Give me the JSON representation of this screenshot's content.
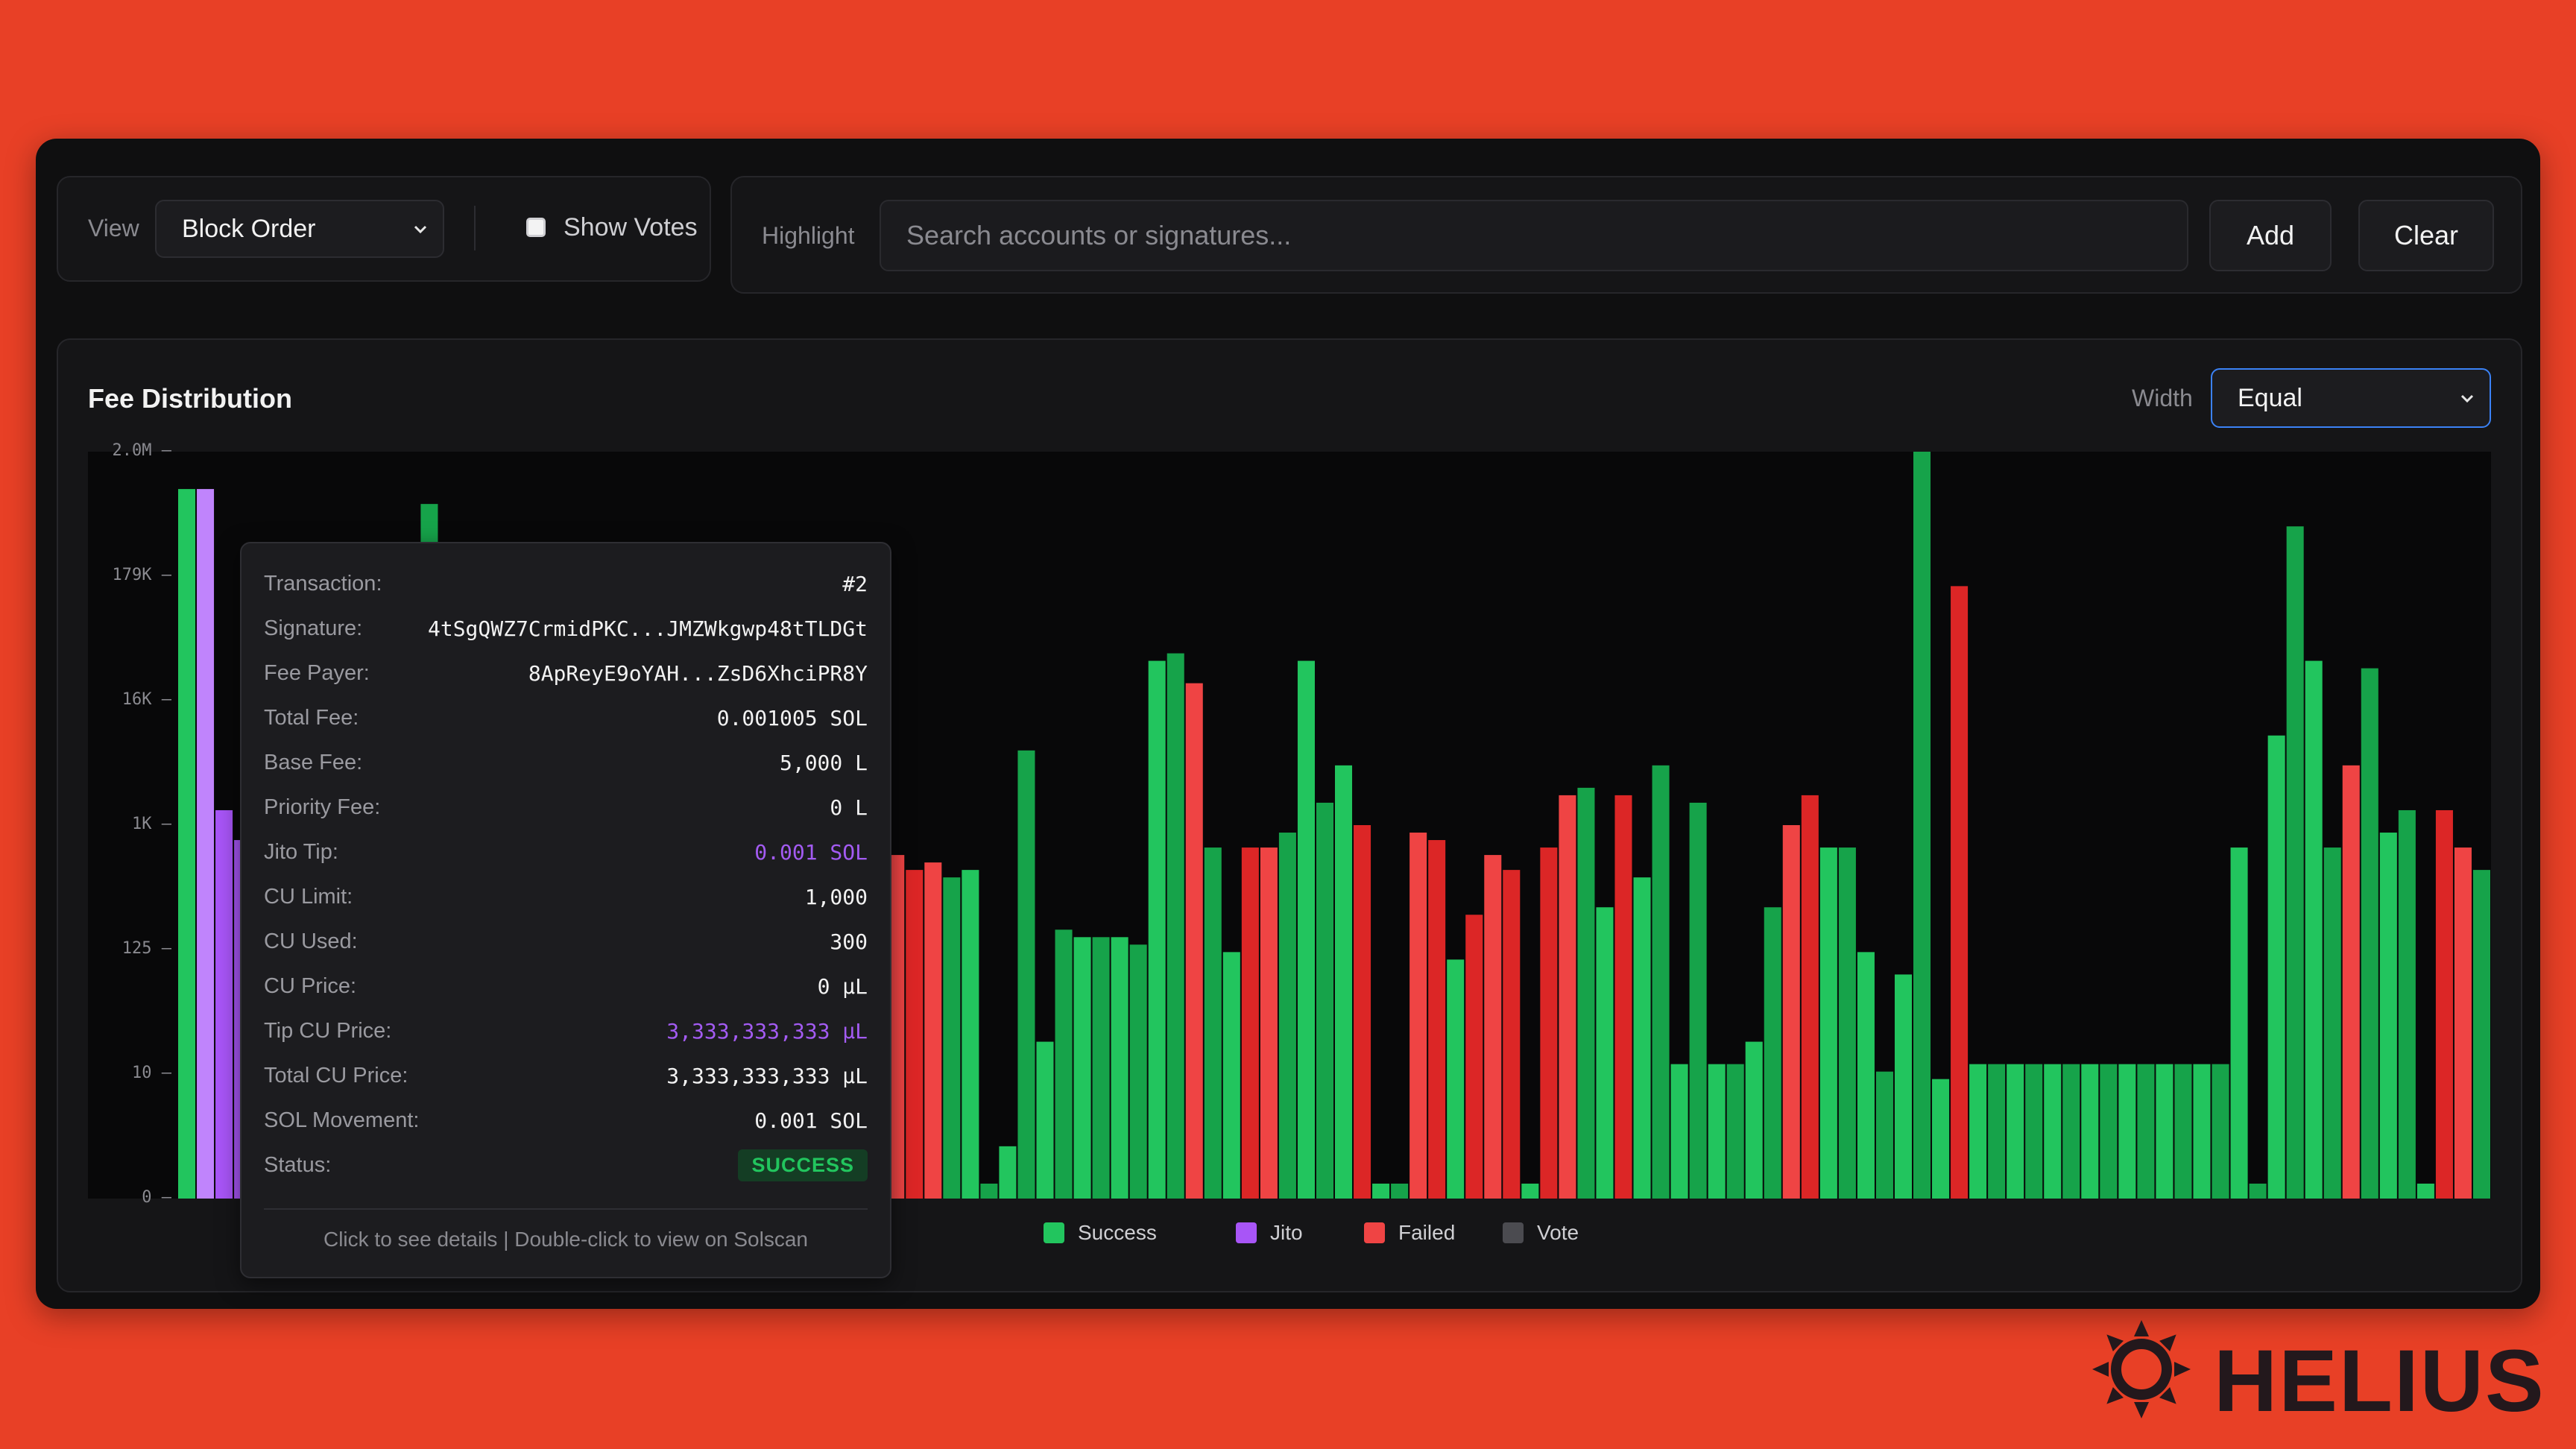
{
  "toolbar": {
    "view_label": "View",
    "view_value": "Block Order",
    "show_votes_label": "Show Votes",
    "highlight_label": "Highlight",
    "search_placeholder": "Search accounts or signatures...",
    "add_label": "Add",
    "clear_label": "Clear"
  },
  "chart_panel": {
    "title": "Fee Distribution",
    "width_label": "Width",
    "width_value": "Equal"
  },
  "colors": {
    "success": "#22c55e",
    "success_alt": "#16a34a",
    "jito": "#a855f7",
    "jito_light": "#c084fc",
    "failed": "#ef4444",
    "failed_alt": "#dc2626",
    "vote": "#4b4b50",
    "background": "#e84026"
  },
  "chart_data": {
    "type": "bar",
    "y_scale": "log",
    "y_ticks": [
      "2.0M",
      "179K",
      "16K",
      "1K",
      "125",
      "10",
      "0"
    ],
    "grid": false,
    "legend": [
      {
        "name": "Success",
        "color": "#22c55e"
      },
      {
        "name": "Jito",
        "color": "#a855f7"
      },
      {
        "name": "Failed",
        "color": "#ef4444"
      },
      {
        "name": "Vote",
        "color": "#4b4b50"
      }
    ],
    "bars_level": [
      0.95,
      0.95,
      0.52,
      0.48,
      0.45,
      0.46,
      0.45,
      0.47,
      0.46,
      0.45,
      0.44,
      0.43,
      0.43,
      0.93,
      0.42,
      0.41,
      0.42,
      0.41,
      0.42,
      0.41,
      0.42,
      0.41,
      0.42,
      0.43,
      0.42,
      0.44,
      0.41,
      0.42,
      0.41,
      0.42,
      0.41,
      0.42,
      0.41,
      0.42,
      0.44,
      0.43,
      0.42,
      0.45,
      0.46,
      0.44,
      0.45,
      0.43,
      0.44,
      0.02,
      0.07,
      0.6,
      0.21,
      0.36,
      0.35,
      0.35,
      0.35,
      0.34,
      0.72,
      0.73,
      0.69,
      0.47,
      0.33,
      0.47,
      0.47,
      0.49,
      0.72,
      0.53,
      0.58,
      0.5,
      0.02,
      0.02,
      0.49,
      0.48,
      0.32,
      0.38,
      0.46,
      0.44,
      0.02,
      0.47,
      0.54,
      0.55,
      0.39,
      0.54,
      0.43,
      0.58,
      0.18,
      0.53,
      0.18,
      0.18,
      0.21,
      0.39,
      0.5,
      0.54,
      0.47,
      0.47,
      0.33,
      0.17,
      0.3,
      1.0,
      0.16,
      0.82,
      0.18,
      0.18,
      0.18,
      0.18,
      0.18,
      0.18,
      0.18,
      0.18,
      0.18,
      0.18,
      0.18,
      0.18,
      0.18,
      0.18,
      0.47,
      0.02,
      0.62,
      0.9,
      0.72,
      0.47,
      0.58,
      0.71,
      0.49,
      0.52,
      0.02,
      0.52,
      0.47,
      0.44
    ],
    "bars_status": [
      "success",
      "jito_light",
      "jito",
      "jito",
      "success",
      "success",
      "success",
      "success",
      "success",
      "success",
      "success",
      "success",
      "success",
      "success",
      "success",
      "success",
      "success",
      "success",
      "success",
      "success",
      "success",
      "success",
      "success",
      "success",
      "success",
      "success",
      "success",
      "success",
      "success",
      "success",
      "success",
      "success",
      "success",
      "success",
      "success",
      "failed",
      "failed",
      "failed",
      "failed",
      "failed",
      "failed",
      "success",
      "success",
      "success",
      "success",
      "success",
      "success",
      "success",
      "success",
      "success",
      "success",
      "success",
      "success",
      "success",
      "failed",
      "success",
      "success",
      "failed",
      "failed",
      "success",
      "success",
      "success",
      "success",
      "failed",
      "success",
      "success",
      "failed",
      "failed",
      "success",
      "failed",
      "failed",
      "failed",
      "success",
      "failed",
      "failed",
      "success",
      "success",
      "failed",
      "success",
      "success",
      "success",
      "success",
      "success",
      "success",
      "success",
      "success",
      "failed",
      "failed",
      "success",
      "success",
      "success",
      "success",
      "success",
      "success",
      "success",
      "failed",
      "success",
      "success",
      "success",
      "success",
      "success",
      "success",
      "success",
      "success",
      "success",
      "success",
      "success",
      "success",
      "success",
      "success",
      "success",
      "success",
      "success",
      "success",
      "success",
      "success",
      "failed",
      "success",
      "success",
      "success",
      "success",
      "failed",
      "failed",
      "success"
    ]
  },
  "tooltip": {
    "rows": [
      {
        "key": "Transaction:",
        "value": "#2"
      },
      {
        "key": "Signature:",
        "value": "4tSgQWZ7CrmidPKC...JMZWkgwp48tTLDGt"
      },
      {
        "key": "Fee Payer:",
        "value": "8ApReyE9oYAH...ZsD6XhciPR8Y"
      },
      {
        "key": "Total Fee:",
        "value": "0.001005 SOL"
      },
      {
        "key": "Base Fee:",
        "value": "5,000 L"
      },
      {
        "key": "Priority Fee:",
        "value": "0 L"
      },
      {
        "key": "Jito Tip:",
        "value": "0.001 SOL"
      },
      {
        "key": "CU Limit:",
        "value": "1,000"
      },
      {
        "key": "CU Used:",
        "value": "300"
      },
      {
        "key": "CU Price:",
        "value": "0 μL"
      },
      {
        "key": "Tip CU Price:",
        "value": "3,333,333,333 μL"
      },
      {
        "key": "Total CU Price:",
        "value": "3,333,333,333 μL"
      },
      {
        "key": "SOL Movement:",
        "value": "0.001 SOL"
      },
      {
        "key": "Status:",
        "value": "SUCCESS"
      }
    ],
    "footer": "Click to see details | Double-click to view on Solscan"
  },
  "brand": {
    "name": "HELIUS"
  }
}
